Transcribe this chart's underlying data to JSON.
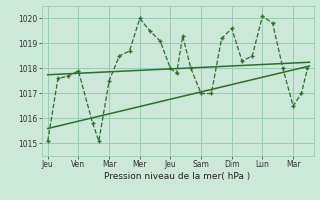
{
  "background_color": "#cce8d8",
  "grid_color": "#99ccb4",
  "line_color": "#2d6e2d",
  "xlabel": "Pression niveau de la mer( hPa )",
  "ylim": [
    1014.5,
    1020.5
  ],
  "yticks": [
    1015,
    1016,
    1017,
    1018,
    1019,
    1020
  ],
  "xtick_labels": [
    "Jeu",
    "Ven",
    "Mar",
    "Mer",
    "Jeu",
    "Sam",
    "Dim",
    "Lun",
    "Mar"
  ],
  "xtick_positions": [
    0,
    1.5,
    3,
    4.5,
    6,
    7.5,
    9,
    10.5,
    12
  ],
  "xlim": [
    -0.3,
    13.0
  ],
  "series1_x": [
    0.0,
    0.5,
    1.0,
    1.5,
    2.2,
    2.5,
    3.0,
    3.5,
    4.0,
    4.5,
    5.0,
    5.5,
    6.0,
    6.3,
    6.6,
    7.0,
    7.5,
    8.0,
    8.5,
    9.0,
    9.5,
    10.0,
    10.5,
    11.0,
    11.5,
    12.0,
    12.4,
    12.7
  ],
  "series1_y": [
    1015.1,
    1017.6,
    1017.7,
    1017.9,
    1015.8,
    1015.1,
    1017.5,
    1018.5,
    1018.7,
    1020.0,
    1019.5,
    1019.1,
    1018.0,
    1017.8,
    1019.3,
    1018.0,
    1017.0,
    1017.0,
    1019.2,
    1019.6,
    1018.3,
    1018.5,
    1020.1,
    1019.8,
    1018.0,
    1016.5,
    1017.0,
    1018.0
  ],
  "trend1_x": [
    0.0,
    12.8
  ],
  "trend1_y": [
    1017.75,
    1018.25
  ],
  "trend2_x": [
    0.0,
    12.8
  ],
  "trend2_y": [
    1015.6,
    1018.1
  ]
}
